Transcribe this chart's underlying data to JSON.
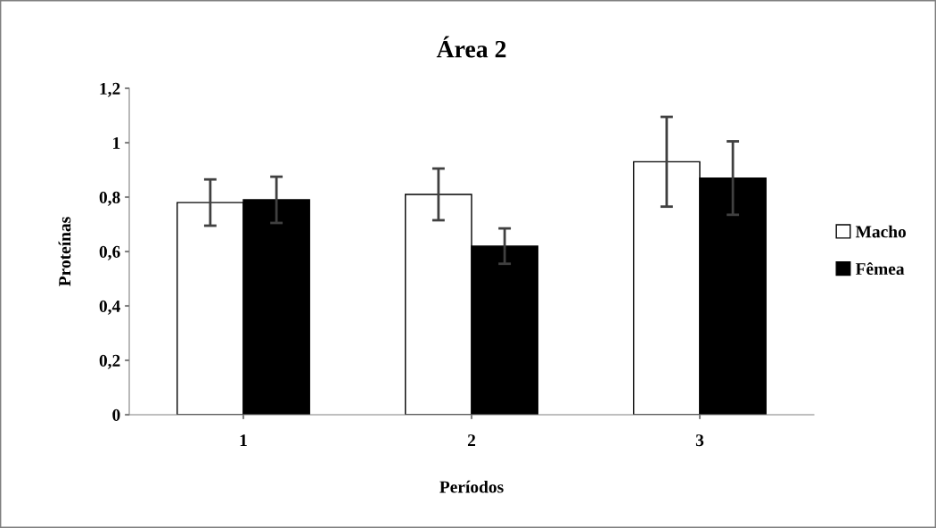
{
  "chart_data": {
    "type": "bar",
    "title": "Área 2",
    "xlabel": "Períodos",
    "ylabel": "Proteínas",
    "categories": [
      "1",
      "2",
      "3"
    ],
    "series": [
      {
        "name": "Macho",
        "color": "#ffffff",
        "values": [
          0.78,
          0.81,
          0.93
        ],
        "errors": [
          0.085,
          0.095,
          0.165
        ]
      },
      {
        "name": "Fêmea",
        "color": "#000000",
        "values": [
          0.79,
          0.62,
          0.87
        ],
        "errors": [
          0.085,
          0.065,
          0.135
        ]
      }
    ],
    "ylim": [
      0,
      1.2
    ],
    "yticks": [
      {
        "value": 0,
        "label": "0"
      },
      {
        "value": 0.2,
        "label": "0,2"
      },
      {
        "value": 0.4,
        "label": "0,4"
      },
      {
        "value": 0.6,
        "label": "0,6"
      },
      {
        "value": 0.8,
        "label": "0,8"
      },
      {
        "value": 1,
        "label": "1"
      },
      {
        "value": 1.2,
        "label": "1,2"
      }
    ],
    "grid": false,
    "legend": "right"
  }
}
